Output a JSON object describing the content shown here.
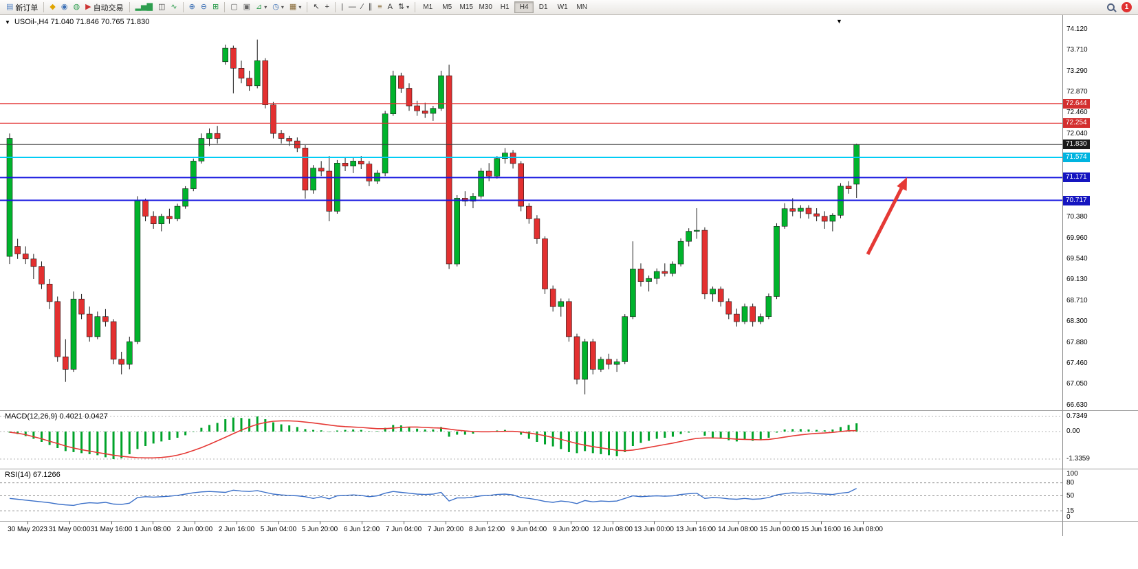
{
  "toolbar": {
    "items": [
      {
        "name": "new-order-button",
        "glyph": "▤",
        "color": "#5b87c5",
        "label": "新订单"
      },
      {
        "sep": true
      },
      {
        "name": "alert-icon",
        "glyph": "◆",
        "color": "#e0a400"
      },
      {
        "name": "account-icon",
        "glyph": "◉",
        "color": "#3b6fb5"
      },
      {
        "name": "community-icon",
        "glyph": "◍",
        "color": "#2e9e4f"
      },
      {
        "name": "auto-trading-button",
        "glyph": "▶",
        "color": "#cc3333",
        "label": "自动交易"
      },
      {
        "sep": true
      },
      {
        "name": "bar-chart-icon",
        "glyph": "▂▅▇",
        "color": "#2e9e4f"
      },
      {
        "name": "candlestick-chart-icon",
        "glyph": "◫",
        "color": "#444444"
      },
      {
        "name": "line-chart-icon",
        "glyph": "∿",
        "color": "#2e9e4f"
      },
      {
        "sep": true
      },
      {
        "name": "zoom-in-icon",
        "glyph": "⊕",
        "color": "#3b6fb5"
      },
      {
        "name": "zoom-out-icon",
        "glyph": "⊖",
        "color": "#3b6fb5"
      },
      {
        "name": "grid-icon",
        "glyph": "⊞",
        "color": "#2e9e4f"
      },
      {
        "sep": true
      },
      {
        "name": "tile-windows-icon",
        "glyph": "▢",
        "color": "#666666"
      },
      {
        "name": "cascade-windows-icon",
        "glyph": "▣",
        "color": "#666666"
      },
      {
        "name": "indicators-button",
        "glyph": "⊿",
        "color": "#2e9e4f",
        "dropdown": true
      },
      {
        "name": "periods-button",
        "glyph": "◷",
        "color": "#3b6fb5",
        "dropdown": true
      },
      {
        "name": "templates-button",
        "glyph": "▦",
        "color": "#8a6d3b",
        "dropdown": true
      },
      {
        "sep": true
      },
      {
        "name": "cursor-icon",
        "glyph": "↖",
        "color": "#333333"
      },
      {
        "name": "crosshair-icon",
        "glyph": "+",
        "color": "#333333"
      },
      {
        "sep": true
      },
      {
        "name": "vertical-line-icon",
        "glyph": "|",
        "color": "#333333"
      },
      {
        "name": "horizontal-line-icon",
        "glyph": "—",
        "color": "#333333"
      },
      {
        "name": "trendline-icon",
        "glyph": "∕",
        "color": "#333333"
      },
      {
        "name": "channel-icon",
        "glyph": "∥",
        "color": "#333333"
      },
      {
        "name": "fibonacci-icon",
        "glyph": "≡",
        "color": "#8a6d3b"
      },
      {
        "name": "text-icon",
        "glyph": "A",
        "color": "#333333"
      },
      {
        "name": "arrows-icon",
        "glyph": "⇅",
        "color": "#333333",
        "dropdown": true
      },
      {
        "sep": true
      }
    ],
    "timeframes": [
      {
        "label": "M1"
      },
      {
        "label": "M5"
      },
      {
        "label": "M15"
      },
      {
        "label": "M30"
      },
      {
        "label": "H1"
      },
      {
        "label": "H4",
        "active": true
      },
      {
        "label": "D1"
      },
      {
        "label": "W1"
      },
      {
        "label": "MN"
      }
    ],
    "notification_count": "1"
  },
  "chart": {
    "symbol_period": "USOil-,H4",
    "ohlc_text": "71.040 71.846 70.765 71.830",
    "marker_glyph": "▼",
    "scroll_glyph": "▼"
  },
  "macd": {
    "label": "MACD(12,26,9)",
    "main_value": "0.4021",
    "signal_value": "0.0427"
  },
  "rsi": {
    "label": "RSI(14)",
    "value": "67.1266"
  },
  "theme": {
    "bull": "#00b32c",
    "bear": "#e33030",
    "wick": "#1a1a1a",
    "macd_hist": "#00a32a",
    "macd_signal": "#e53935",
    "rsi_line": "#3a6fc8",
    "grid_dotted": "#b5b5b5"
  },
  "chart_data": {
    "type": "candlestick",
    "symbol": "USOil-",
    "period": "H4",
    "current_bar": {
      "open": 71.04,
      "high": 71.846,
      "low": 70.765,
      "close": 71.83
    },
    "price_range": [
      66.534,
      74.408
    ],
    "y_ticks": [
      "74.120",
      "73.710",
      "73.290",
      "72.870",
      "72.460",
      "72.040",
      "70.380",
      "69.960",
      "69.540",
      "69.130",
      "68.710",
      "68.300",
      "67.880",
      "67.460",
      "67.050",
      "66.630"
    ],
    "x_labels": [
      "30 May 2023",
      "31 May 00:00",
      "31 May 16:00",
      "1 Jun 08:00",
      "2 Jun 00:00",
      "2 Jun 16:00",
      "5 Jun 04:00",
      "5 Jun 20:00",
      "6 Jun 12:00",
      "7 Jun 04:00",
      "7 Jun 20:00",
      "8 Jun 12:00",
      "9 Jun 04:00",
      "9 Jun 20:00",
      "12 Jun 08:00",
      "13 Jun 00:00",
      "13 Jun 16:00",
      "14 Jun 08:00",
      "15 Jun 00:00",
      "15 Jun 16:00",
      "16 Jun 08:00"
    ],
    "levels": [
      {
        "price": 72.644,
        "label": "72.644",
        "line": "#e33030",
        "badge": "#d32f2f",
        "width": 1.2
      },
      {
        "price": 72.254,
        "label": "72.254",
        "line": "#e33030",
        "badge": "#d32f2f",
        "width": 1.2
      },
      {
        "price": 71.83,
        "label": "71.830",
        "line": "#3a3a3a",
        "badge": "#1a1a1a",
        "width": 1
      },
      {
        "price": 71.574,
        "label": "71.574",
        "line": "#00ccf5",
        "badge": "#00b4e0",
        "width": 2
      },
      {
        "price": 71.171,
        "label": "71.171",
        "line": "#1717e0",
        "badge": "#1515c0",
        "width": 2
      },
      {
        "price": 70.717,
        "label": "70.717",
        "line": "#1717e0",
        "badge": "#1515c0",
        "width": 2
      }
    ],
    "arrow": {
      "color": "#e53935",
      "from": [
        1262,
        348
      ],
      "to": [
        1319,
        236
      ]
    },
    "candles": [
      [
        69.6,
        72.05,
        69.45,
        71.95
      ],
      [
        69.8,
        69.95,
        69.55,
        69.65
      ],
      [
        69.65,
        69.8,
        69.45,
        69.55
      ],
      [
        69.55,
        69.65,
        69.15,
        69.4
      ],
      [
        69.4,
        69.5,
        68.95,
        69.05
      ],
      [
        69.05,
        69.15,
        68.55,
        68.7
      ],
      [
        68.7,
        68.8,
        67.5,
        67.6
      ],
      [
        67.6,
        67.95,
        67.1,
        67.35
      ],
      [
        67.35,
        68.9,
        67.3,
        68.75
      ],
      [
        68.75,
        68.85,
        68.35,
        68.45
      ],
      [
        68.45,
        68.6,
        67.9,
        68.0
      ],
      [
        68.0,
        68.5,
        67.95,
        68.4
      ],
      [
        68.4,
        68.55,
        68.2,
        68.3
      ],
      [
        68.3,
        68.35,
        67.45,
        67.55
      ],
      [
        67.55,
        67.7,
        67.25,
        67.45
      ],
      [
        67.45,
        68.0,
        67.35,
        67.9
      ],
      [
        67.9,
        70.8,
        67.85,
        70.72
      ],
      [
        70.72,
        70.75,
        70.3,
        70.4
      ],
      [
        70.4,
        70.5,
        70.15,
        70.25
      ],
      [
        70.25,
        70.45,
        70.1,
        70.4
      ],
      [
        70.4,
        70.55,
        70.25,
        70.35
      ],
      [
        70.35,
        70.65,
        70.3,
        70.6
      ],
      [
        70.6,
        71.0,
        70.55,
        70.95
      ],
      [
        70.95,
        71.55,
        70.9,
        71.5
      ],
      [
        71.5,
        72.05,
        71.45,
        71.95
      ],
      [
        71.95,
        72.15,
        71.8,
        72.05
      ],
      [
        72.05,
        72.2,
        71.85,
        71.95
      ],
      [
        73.48,
        73.82,
        73.42,
        73.75
      ],
      [
        73.75,
        73.8,
        72.85,
        73.35
      ],
      [
        73.35,
        73.5,
        73.05,
        73.15
      ],
      [
        73.15,
        73.3,
        72.9,
        73.0
      ],
      [
        73.0,
        73.92,
        72.95,
        73.5
      ],
      [
        73.5,
        73.55,
        72.55,
        72.62
      ],
      [
        72.62,
        72.68,
        71.95,
        72.05
      ],
      [
        72.05,
        72.12,
        71.85,
        71.95
      ],
      [
        71.95,
        72.0,
        71.8,
        71.9
      ],
      [
        71.9,
        71.97,
        71.68,
        71.76
      ],
      [
        71.76,
        71.82,
        70.75,
        70.92
      ],
      [
        70.92,
        71.42,
        70.85,
        71.36
      ],
      [
        71.36,
        71.5,
        71.2,
        71.3
      ],
      [
        71.3,
        71.6,
        70.3,
        70.5
      ],
      [
        70.5,
        71.52,
        70.45,
        71.46
      ],
      [
        71.46,
        71.56,
        71.3,
        71.4
      ],
      [
        71.4,
        71.56,
        71.26,
        71.5
      ],
      [
        71.5,
        71.6,
        71.34,
        71.44
      ],
      [
        71.44,
        71.5,
        71.0,
        71.1
      ],
      [
        71.1,
        71.32,
        71.04,
        71.26
      ],
      [
        71.26,
        72.5,
        71.2,
        72.44
      ],
      [
        72.44,
        73.3,
        72.4,
        73.2
      ],
      [
        73.2,
        73.26,
        72.86,
        72.95
      ],
      [
        72.95,
        73.05,
        72.5,
        72.6
      ],
      [
        72.6,
        72.7,
        72.4,
        72.5
      ],
      [
        72.5,
        72.66,
        72.36,
        72.45
      ],
      [
        72.45,
        72.6,
        72.3,
        72.55
      ],
      [
        72.55,
        73.3,
        72.5,
        73.2
      ],
      [
        73.2,
        73.42,
        69.35,
        69.45
      ],
      [
        69.45,
        70.82,
        69.4,
        70.76
      ],
      [
        70.76,
        70.9,
        70.6,
        70.7
      ],
      [
        70.7,
        70.86,
        70.56,
        70.8
      ],
      [
        70.8,
        71.36,
        70.75,
        71.3
      ],
      [
        71.3,
        71.46,
        71.1,
        71.2
      ],
      [
        71.2,
        71.6,
        71.15,
        71.55
      ],
      [
        71.55,
        71.76,
        71.45,
        71.66
      ],
      [
        71.66,
        71.72,
        71.35,
        71.45
      ],
      [
        71.45,
        71.5,
        70.5,
        70.6
      ],
      [
        70.6,
        70.66,
        70.25,
        70.35
      ],
      [
        70.35,
        70.42,
        69.85,
        69.95
      ],
      [
        69.95,
        70.0,
        68.85,
        68.95
      ],
      [
        68.95,
        69.02,
        68.5,
        68.6
      ],
      [
        68.6,
        68.76,
        68.4,
        68.7
      ],
      [
        68.7,
        68.76,
        67.9,
        68.0
      ],
      [
        68.0,
        68.06,
        67.05,
        67.15
      ],
      [
        67.15,
        67.96,
        66.85,
        67.9
      ],
      [
        67.9,
        67.96,
        67.25,
        67.35
      ],
      [
        67.35,
        67.6,
        67.3,
        67.55
      ],
      [
        67.55,
        67.66,
        67.35,
        67.45
      ],
      [
        67.45,
        67.56,
        67.3,
        67.5
      ],
      [
        67.5,
        68.45,
        67.45,
        68.4
      ],
      [
        68.4,
        69.9,
        68.35,
        69.35
      ],
      [
        69.35,
        69.46,
        69.0,
        69.1
      ],
      [
        69.1,
        69.22,
        68.9,
        69.16
      ],
      [
        69.16,
        69.36,
        69.05,
        69.3
      ],
      [
        69.3,
        69.46,
        69.2,
        69.26
      ],
      [
        69.26,
        69.5,
        69.2,
        69.45
      ],
      [
        69.45,
        69.96,
        69.4,
        69.9
      ],
      [
        69.9,
        70.16,
        69.8,
        70.1
      ],
      [
        70.1,
        70.56,
        69.95,
        70.12
      ],
      [
        70.12,
        70.18,
        68.75,
        68.85
      ],
      [
        68.85,
        69.0,
        68.7,
        68.95
      ],
      [
        68.95,
        69.0,
        68.6,
        68.7
      ],
      [
        68.7,
        68.76,
        68.35,
        68.45
      ],
      [
        68.45,
        68.56,
        68.2,
        68.3
      ],
      [
        68.3,
        68.66,
        68.25,
        68.6
      ],
      [
        68.6,
        68.66,
        68.2,
        68.3
      ],
      [
        68.3,
        68.46,
        68.25,
        68.4
      ],
      [
        68.4,
        68.86,
        68.35,
        68.8
      ],
      [
        68.8,
        70.26,
        68.75,
        70.2
      ],
      [
        70.2,
        70.66,
        70.15,
        70.55
      ],
      [
        70.55,
        70.76,
        70.4,
        70.5
      ],
      [
        70.5,
        70.62,
        70.36,
        70.56
      ],
      [
        70.56,
        70.62,
        70.35,
        70.45
      ],
      [
        70.45,
        70.56,
        70.3,
        70.4
      ],
      [
        70.4,
        70.5,
        70.15,
        70.3
      ],
      [
        70.3,
        70.46,
        70.1,
        70.42
      ],
      [
        70.42,
        71.06,
        70.36,
        71.0
      ],
      [
        71.0,
        71.1,
        70.85,
        70.95
      ],
      [
        71.04,
        71.846,
        70.765,
        71.83
      ]
    ],
    "macd": {
      "scale_labels": [
        "0.7349",
        "0.00",
        "-1.3359"
      ],
      "scale_values": [
        0.7349,
        0,
        -1.3359
      ],
      "histogram": [
        -0.05,
        -0.12,
        -0.22,
        -0.35,
        -0.5,
        -0.65,
        -0.8,
        -0.95,
        -1.0,
        -1.05,
        -1.1,
        -1.15,
        -1.25,
        -1.3359,
        -1.3,
        -1.1,
        -0.85,
        -0.7,
        -0.58,
        -0.48,
        -0.4,
        -0.3,
        -0.18,
        -0.02,
        0.18,
        0.32,
        0.42,
        0.6,
        0.68,
        0.66,
        0.62,
        0.7349,
        0.6,
        0.45,
        0.35,
        0.3,
        0.22,
        0.12,
        0.08,
        0.06,
        -0.02,
        0.05,
        0.08,
        0.1,
        0.08,
        0.02,
        0.02,
        0.18,
        0.32,
        0.3,
        0.22,
        0.14,
        0.1,
        0.1,
        0.22,
        -0.25,
        -0.15,
        -0.15,
        -0.1,
        -0.02,
        -0.02,
        0.05,
        0.08,
        0.02,
        -0.15,
        -0.35,
        -0.5,
        -0.62,
        -0.72,
        -0.85,
        -1.0,
        -1.05,
        -0.95,
        -1.05,
        -1.1,
        -1.15,
        -1.2,
        -1.0,
        -0.7,
        -0.55,
        -0.45,
        -0.35,
        -0.3,
        -0.25,
        -0.12,
        -0.05,
        0.0,
        -0.2,
        -0.3,
        -0.35,
        -0.42,
        -0.48,
        -0.4,
        -0.45,
        -0.42,
        -0.3,
        -0.05,
        0.1,
        0.12,
        0.12,
        0.1,
        0.08,
        0.06,
        0.1,
        0.22,
        0.32,
        0.4021
      ],
      "signal": [
        -0.03,
        -0.08,
        -0.15,
        -0.25,
        -0.35,
        -0.47,
        -0.58,
        -0.7,
        -0.8,
        -0.88,
        -0.95,
        -1.02,
        -1.08,
        -1.15,
        -1.2,
        -1.24,
        -1.27,
        -1.28,
        -1.28,
        -1.26,
        -1.22,
        -1.15,
        -1.05,
        -0.92,
        -0.78,
        -0.62,
        -0.45,
        -0.28,
        -0.1,
        0.07,
        0.22,
        0.35,
        0.44,
        0.5,
        0.52,
        0.52,
        0.5,
        0.46,
        0.42,
        0.37,
        0.32,
        0.27,
        0.24,
        0.22,
        0.2,
        0.17,
        0.14,
        0.14,
        0.17,
        0.2,
        0.22,
        0.22,
        0.2,
        0.18,
        0.17,
        0.12,
        0.07,
        0.03,
        0.0,
        -0.01,
        -0.01,
        0.0,
        0.01,
        0.01,
        -0.02,
        -0.07,
        -0.13,
        -0.2,
        -0.29,
        -0.38,
        -0.48,
        -0.58,
        -0.66,
        -0.73,
        -0.79,
        -0.85,
        -0.91,
        -0.93,
        -0.9,
        -0.84,
        -0.77,
        -0.7,
        -0.63,
        -0.56,
        -0.48,
        -0.4,
        -0.33,
        -0.31,
        -0.31,
        -0.32,
        -0.34,
        -0.37,
        -0.38,
        -0.39,
        -0.4,
        -0.38,
        -0.33,
        -0.27,
        -0.21,
        -0.16,
        -0.12,
        -0.09,
        -0.07,
        -0.04,
        0.0,
        0.04,
        0.0427
      ]
    },
    "rsi": {
      "scale_labels": [
        "100",
        "80",
        "50",
        "15",
        "0"
      ],
      "scale_values": [
        100,
        80,
        50,
        15,
        0
      ],
      "level_lines": [
        80,
        50,
        15
      ],
      "values": [
        44,
        42,
        40,
        38,
        36,
        34,
        31,
        29,
        28,
        32,
        34,
        33,
        35,
        31,
        30,
        33,
        46,
        48,
        47,
        48,
        49,
        51,
        54,
        57,
        59,
        60,
        59,
        58,
        63,
        61,
        60,
        62,
        58,
        54,
        52,
        51,
        50,
        48,
        44,
        48,
        43,
        50,
        51,
        52,
        51,
        48,
        50,
        56,
        60,
        58,
        56,
        54,
        53,
        54,
        58,
        38,
        45,
        45,
        47,
        50,
        51,
        53,
        54,
        52,
        46,
        44,
        41,
        37,
        35,
        38,
        36,
        32,
        39,
        36,
        38,
        37,
        38,
        44,
        50,
        48,
        49,
        50,
        49,
        50,
        53,
        55,
        56,
        44,
        46,
        45,
        43,
        42,
        44,
        42,
        43,
        46,
        52,
        55,
        57,
        56,
        57,
        55,
        54,
        53,
        56,
        58,
        67.13
      ]
    }
  }
}
